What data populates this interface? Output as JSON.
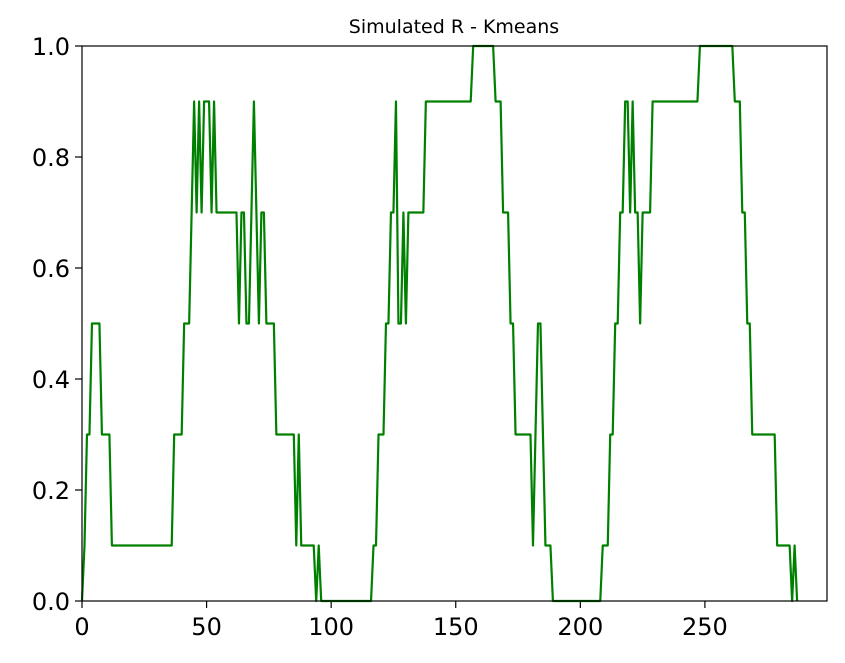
{
  "chart_data": {
    "type": "line",
    "title": "Simulated R - Kmeans",
    "xlabel": "",
    "ylabel": "",
    "xlim": [
      0,
      299
    ],
    "ylim": [
      0,
      1.0
    ],
    "x_ticks": [
      0,
      50,
      100,
      150,
      200,
      250
    ],
    "x_tick_labels": [
      "0",
      "50",
      "100",
      "150",
      "200",
      "250"
    ],
    "y_ticks": [
      0.0,
      0.2,
      0.4,
      0.6,
      0.8,
      1.0
    ],
    "y_tick_labels": [
      "0.0",
      "0.2",
      "0.4",
      "0.6",
      "0.8",
      "1.0"
    ],
    "grid": false,
    "series": [
      {
        "color": "#008000",
        "points": [
          [
            0,
            0.0
          ],
          [
            1,
            0.1
          ],
          [
            2,
            0.3
          ],
          [
            3,
            0.3
          ],
          [
            4,
            0.5
          ],
          [
            5,
            0.5
          ],
          [
            6,
            0.5
          ],
          [
            7,
            0.5
          ],
          [
            8,
            0.3
          ],
          [
            9,
            0.3
          ],
          [
            10,
            0.3
          ],
          [
            11,
            0.3
          ],
          [
            12,
            0.1
          ],
          [
            36,
            0.1
          ],
          [
            37,
            0.3
          ],
          [
            38,
            0.3
          ],
          [
            39,
            0.3
          ],
          [
            40,
            0.3
          ],
          [
            41,
            0.5
          ],
          [
            42,
            0.5
          ],
          [
            43,
            0.5
          ],
          [
            44,
            0.7
          ],
          [
            45,
            0.9
          ],
          [
            46,
            0.7
          ],
          [
            47,
            0.9
          ],
          [
            48,
            0.7
          ],
          [
            49,
            0.9
          ],
          [
            50,
            0.9
          ],
          [
            51,
            0.9
          ],
          [
            52,
            0.7
          ],
          [
            53,
            0.9
          ],
          [
            54,
            0.7
          ],
          [
            55,
            0.7
          ],
          [
            62,
            0.7
          ],
          [
            63,
            0.5
          ],
          [
            64,
            0.7
          ],
          [
            65,
            0.7
          ],
          [
            66,
            0.5
          ],
          [
            67,
            0.5
          ],
          [
            68,
            0.7
          ],
          [
            69,
            0.9
          ],
          [
            70,
            0.7
          ],
          [
            71,
            0.5
          ],
          [
            72,
            0.7
          ],
          [
            73,
            0.7
          ],
          [
            74,
            0.5
          ],
          [
            75,
            0.5
          ],
          [
            76,
            0.5
          ],
          [
            77,
            0.5
          ],
          [
            78,
            0.3
          ],
          [
            79,
            0.3
          ],
          [
            85,
            0.3
          ],
          [
            86,
            0.1
          ],
          [
            87,
            0.3
          ],
          [
            88,
            0.1
          ],
          [
            89,
            0.1
          ],
          [
            93,
            0.1
          ],
          [
            94,
            0.0
          ],
          [
            95,
            0.1
          ],
          [
            96,
            0.0
          ],
          [
            116,
            0.0
          ],
          [
            117,
            0.1
          ],
          [
            118,
            0.1
          ],
          [
            119,
            0.3
          ],
          [
            120,
            0.3
          ],
          [
            121,
            0.3
          ],
          [
            122,
            0.5
          ],
          [
            123,
            0.5
          ],
          [
            124,
            0.7
          ],
          [
            125,
            0.7
          ],
          [
            126,
            0.9
          ],
          [
            127,
            0.5
          ],
          [
            128,
            0.5
          ],
          [
            129,
            0.7
          ],
          [
            130,
            0.5
          ],
          [
            131,
            0.7
          ],
          [
            132,
            0.7
          ],
          [
            137,
            0.7
          ],
          [
            138,
            0.9
          ],
          [
            156,
            0.9
          ],
          [
            157,
            1.0
          ],
          [
            165,
            1.0
          ],
          [
            166,
            0.9
          ],
          [
            167,
            0.9
          ],
          [
            168,
            0.9
          ],
          [
            169,
            0.7
          ],
          [
            170,
            0.7
          ],
          [
            171,
            0.7
          ],
          [
            172,
            0.5
          ],
          [
            173,
            0.5
          ],
          [
            174,
            0.3
          ],
          [
            175,
            0.3
          ],
          [
            180,
            0.3
          ],
          [
            181,
            0.1
          ],
          [
            182,
            0.3
          ],
          [
            183,
            0.5
          ],
          [
            184,
            0.5
          ],
          [
            185,
            0.3
          ],
          [
            186,
            0.1
          ],
          [
            187,
            0.1
          ],
          [
            188,
            0.1
          ],
          [
            189,
            0.0
          ],
          [
            208,
            0.0
          ],
          [
            209,
            0.1
          ],
          [
            210,
            0.1
          ],
          [
            211,
            0.1
          ],
          [
            212,
            0.3
          ],
          [
            213,
            0.3
          ],
          [
            214,
            0.5
          ],
          [
            215,
            0.5
          ],
          [
            216,
            0.7
          ],
          [
            217,
            0.7
          ],
          [
            218,
            0.9
          ],
          [
            219,
            0.9
          ],
          [
            220,
            0.7
          ],
          [
            221,
            0.9
          ],
          [
            222,
            0.7
          ],
          [
            223,
            0.7
          ],
          [
            224,
            0.5
          ],
          [
            225,
            0.7
          ],
          [
            226,
            0.7
          ],
          [
            227,
            0.7
          ],
          [
            228,
            0.7
          ],
          [
            229,
            0.9
          ],
          [
            247,
            0.9
          ],
          [
            248,
            1.0
          ],
          [
            261,
            1.0
          ],
          [
            262,
            0.9
          ],
          [
            263,
            0.9
          ],
          [
            264,
            0.9
          ],
          [
            265,
            0.7
          ],
          [
            266,
            0.7
          ],
          [
            267,
            0.5
          ],
          [
            268,
            0.5
          ],
          [
            269,
            0.3
          ],
          [
            270,
            0.3
          ],
          [
            278,
            0.3
          ],
          [
            279,
            0.1
          ],
          [
            280,
            0.1
          ],
          [
            284,
            0.1
          ],
          [
            285,
            0.0
          ],
          [
            286,
            0.1
          ],
          [
            287,
            0.0
          ]
        ]
      }
    ]
  }
}
